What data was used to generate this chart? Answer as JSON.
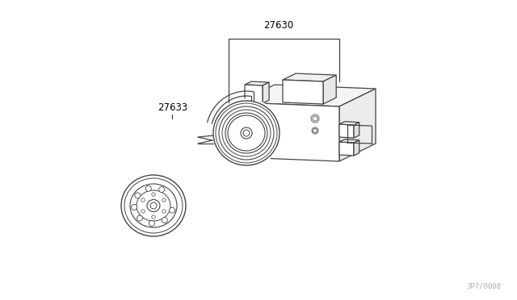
{
  "background_color": "#ffffff",
  "line_color": "#444444",
  "label_27630": "27630",
  "label_27633": "27633",
  "watermark": "JP7/0008",
  "fig_width": 6.4,
  "fig_height": 3.72,
  "dpi": 100
}
